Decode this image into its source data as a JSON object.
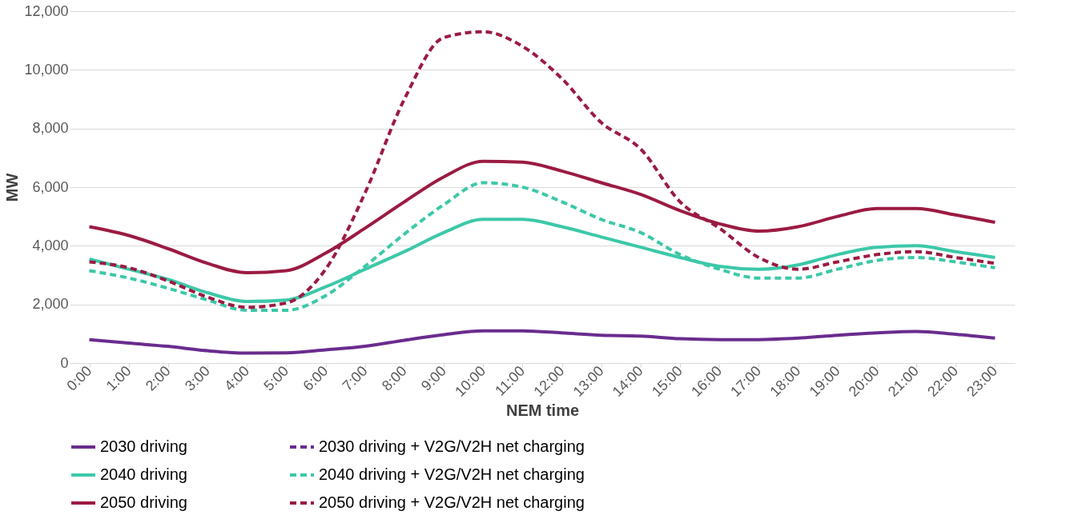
{
  "chart_data": {
    "type": "line",
    "xlabel": "NEM time",
    "ylabel": "MW",
    "categories": [
      "0:00",
      "1:00",
      "2:00",
      "3:00",
      "4:00",
      "5:00",
      "6:00",
      "7:00",
      "8:00",
      "9:00",
      "10:00",
      "11:00",
      "12:00",
      "13:00",
      "14:00",
      "15:00",
      "16:00",
      "17:00",
      "18:00",
      "19:00",
      "20:00",
      "21:00",
      "22:00",
      "23:00"
    ],
    "ylim": [
      0,
      12000
    ],
    "yticks": [
      {
        "value": 0,
        "label": "0"
      },
      {
        "value": 2000,
        "label": "2,000"
      },
      {
        "value": 4000,
        "label": "4,000"
      },
      {
        "value": 6000,
        "label": "6,000"
      },
      {
        "value": 8000,
        "label": "8,000"
      },
      {
        "value": 10000,
        "label": "10,000"
      },
      {
        "value": 12000,
        "label": "12,000"
      }
    ],
    "grid": "y",
    "legend": "bottom",
    "marker": "none",
    "series": [
      {
        "name": "2030 driving",
        "color": "#6a2c8e",
        "line_style": "solid",
        "values": [
          800,
          680,
          570,
          420,
          340,
          350,
          450,
          570,
          780,
          970,
          1100,
          1100,
          1030,
          950,
          920,
          830,
          800,
          800,
          850,
          950,
          1030,
          1080,
          980,
          850
        ]
      },
      {
        "name": "2030 driving + V2G/V2H net charging",
        "color": "#6a2c8e",
        "line_style": "dashed",
        "values": [
          null,
          null,
          null,
          null,
          null,
          null,
          null,
          null,
          null,
          null,
          null,
          null,
          null,
          null,
          null,
          null,
          null,
          null,
          null,
          null,
          null,
          null,
          null,
          null
        ]
      },
      {
        "name": "2040 driving",
        "color": "#3cc8a8",
        "line_style": "solid",
        "values": [
          3550,
          3200,
          2850,
          2400,
          2100,
          2150,
          2600,
          3200,
          3800,
          4450,
          4900,
          4900,
          4650,
          4300,
          3950,
          3600,
          3300,
          3200,
          3350,
          3700,
          3950,
          4000,
          3800,
          3600
        ]
      },
      {
        "name": "2040 driving + V2G/V2H net charging",
        "color": "#3cc8a8",
        "line_style": "dashed",
        "values": [
          3150,
          2900,
          2550,
          2150,
          1800,
          1800,
          2300,
          3300,
          4400,
          5400,
          6150,
          6000,
          5500,
          4900,
          4450,
          3700,
          3200,
          2900,
          2900,
          3200,
          3500,
          3600,
          3450,
          3250
        ]
      },
      {
        "name": "2050 driving",
        "color": "#9b1b42",
        "line_style": "solid",
        "values": [
          4650,
          4350,
          3900,
          3400,
          3080,
          3150,
          3750,
          4600,
          5500,
          6350,
          6880,
          6850,
          6550,
          6150,
          5750,
          5200,
          4750,
          4500,
          4650,
          5000,
          5270,
          5270,
          5050,
          4800
        ]
      },
      {
        "name": "2050 driving + V2G/V2H net charging",
        "color": "#9b1b42",
        "line_style": "dashed",
        "values": [
          3450,
          3250,
          2800,
          2250,
          1900,
          2050,
          3200,
          5800,
          9000,
          11100,
          11300,
          10800,
          9700,
          8200,
          7300,
          5500,
          4600,
          3600,
          3200,
          3450,
          3700,
          3800,
          3600,
          3400
        ]
      }
    ]
  }
}
